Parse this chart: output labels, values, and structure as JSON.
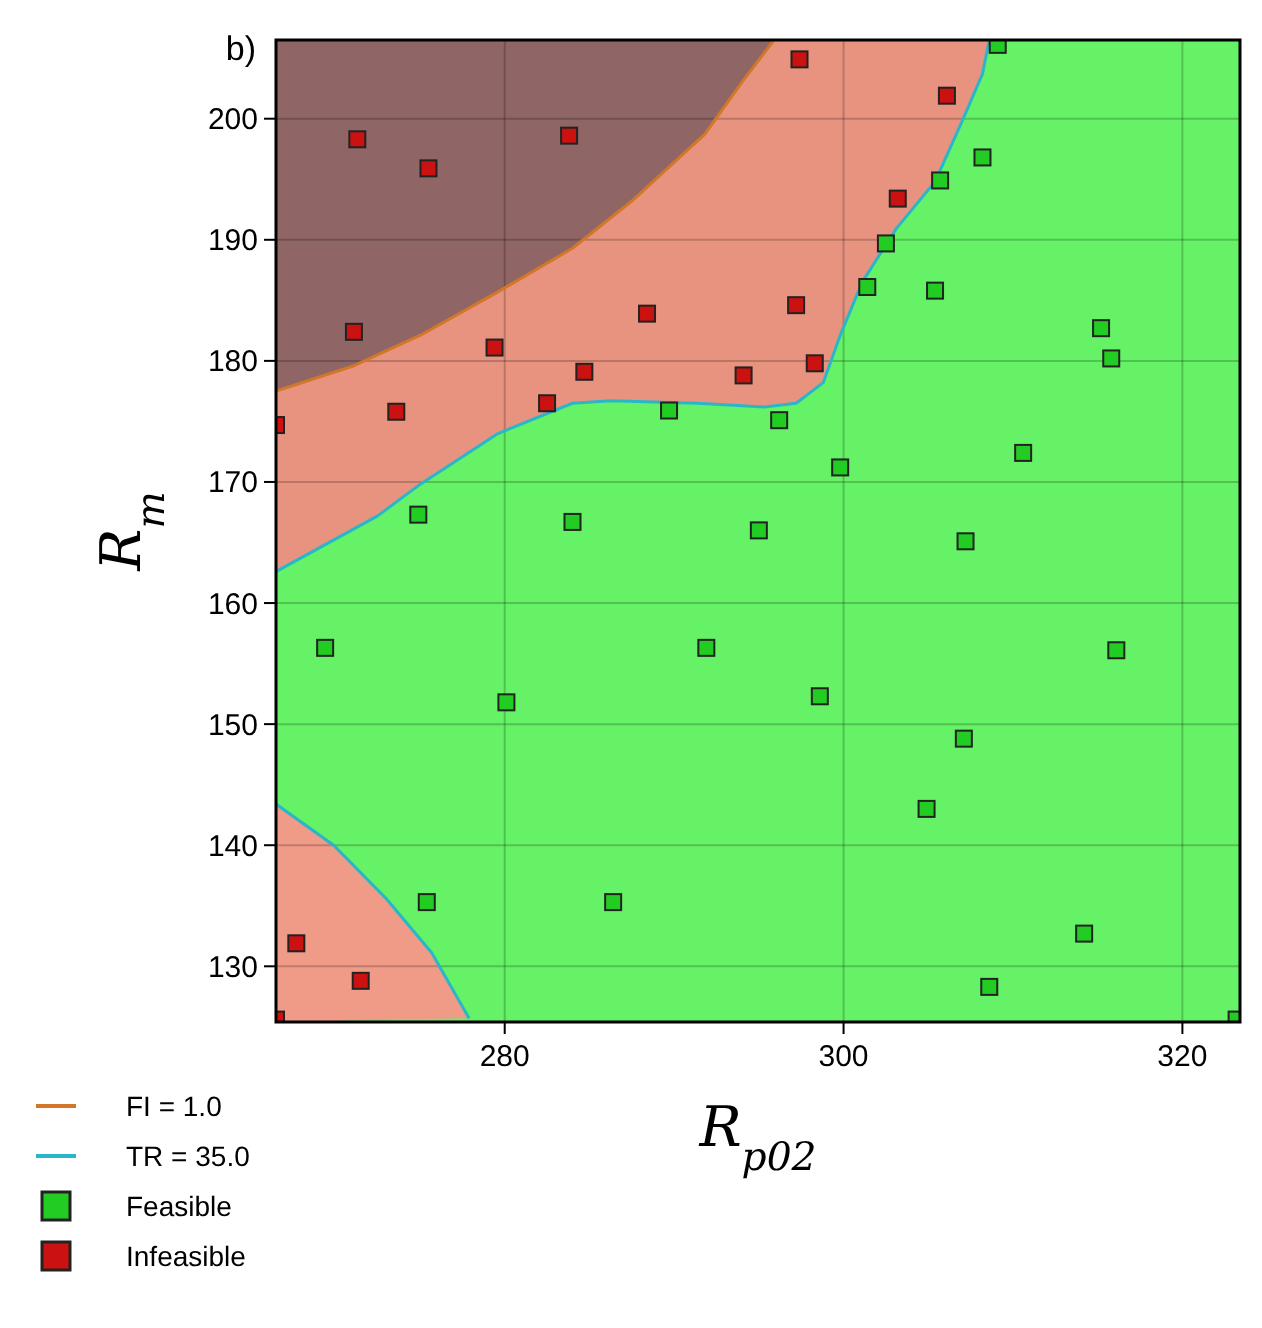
{
  "chart_data": {
    "type": "scatter",
    "title": "b)",
    "xlabel": "R$_{p02}$",
    "ylabel": "R$_{m}$",
    "xlim": [
      266.5,
      323.4
    ],
    "ylim": [
      125.4,
      206.5
    ],
    "xticks": [
      280,
      300,
      320
    ],
    "yticks": [
      130,
      140,
      150,
      160,
      170,
      180,
      190,
      200
    ],
    "grid": true,
    "legend": "bottom left",
    "series": [
      {
        "type": "line",
        "name": "FI = 1.0",
        "color": "#d2772a",
        "x": [
          266.5,
          271.1,
          275,
          279.6,
          284,
          287.5,
          291.8,
          294.1,
          295.9
        ],
        "values": [
          177.5,
          179.6,
          182.1,
          185.7,
          189.3,
          193.2,
          198.7,
          203.2,
          206.5
        ]
      },
      {
        "type": "line",
        "name": "TR = 35.0",
        "color": "#29b6c9",
        "x": [
          266.5,
          272.5,
          275,
          279.6,
          284,
          286.3,
          291.4,
          295.3,
          297.2,
          298.8,
          299.8,
          301.1,
          303.1,
          305.4,
          307,
          308.2,
          308.6
        ],
        "values": [
          162.6,
          167.2,
          169.8,
          174,
          176.5,
          176.7,
          176.5,
          176.2,
          176.5,
          178.2,
          182.1,
          186.5,
          190.9,
          194.8,
          199.8,
          203.7,
          206.5
        ]
      },
      {
        "type": "line",
        "color": "#29b6c9",
        "x": [
          266.5,
          269.9,
          273,
          275.7,
          277.9
        ],
        "values": [
          143.4,
          140,
          135.6,
          131.1,
          125.7
        ]
      },
      {
        "name": "Feasible",
        "color": "#22cc22",
        "marker": "square",
        "x": [
          309.1,
          308.2,
          305.7,
          302.5,
          301.4,
          305.4,
          315.2,
          315.8,
          289.7,
          296.2,
          299.8,
          310.6,
          274.9,
          284,
          295,
          307.2,
          269.4,
          291.9,
          316.1,
          280.1,
          298.6,
          307.1,
          304.9,
          275.4,
          286.4,
          314.2,
          308.6,
          323.2
        ],
        "values": [
          206.1,
          196.8,
          194.9,
          189.7,
          186.1,
          185.8,
          182.7,
          180.2,
          175.9,
          175.1,
          171.2,
          172.4,
          167.3,
          166.7,
          166,
          165.1,
          156.3,
          156.3,
          156.1,
          151.8,
          152.3,
          148.8,
          143,
          135.3,
          135.3,
          132.7,
          128.3,
          125.6
        ]
      },
      {
        "name": "Infeasible",
        "color": "#cc1111",
        "marker": "square",
        "x": [
          297.4,
          306.1,
          271.3,
          283.8,
          275.5,
          303.2,
          271.1,
          279.4,
          288.4,
          297.2,
          284.7,
          294.1,
          298.3,
          282.5,
          273.6,
          266.5,
          267.7,
          271.5,
          266.5
        ],
        "values": [
          204.9,
          201.9,
          198.3,
          198.6,
          195.9,
          193.4,
          182.4,
          181.1,
          183.9,
          184.6,
          179.1,
          178.8,
          179.8,
          176.5,
          175.8,
          174.7,
          131.9,
          128.8,
          125.6
        ]
      }
    ]
  }
}
